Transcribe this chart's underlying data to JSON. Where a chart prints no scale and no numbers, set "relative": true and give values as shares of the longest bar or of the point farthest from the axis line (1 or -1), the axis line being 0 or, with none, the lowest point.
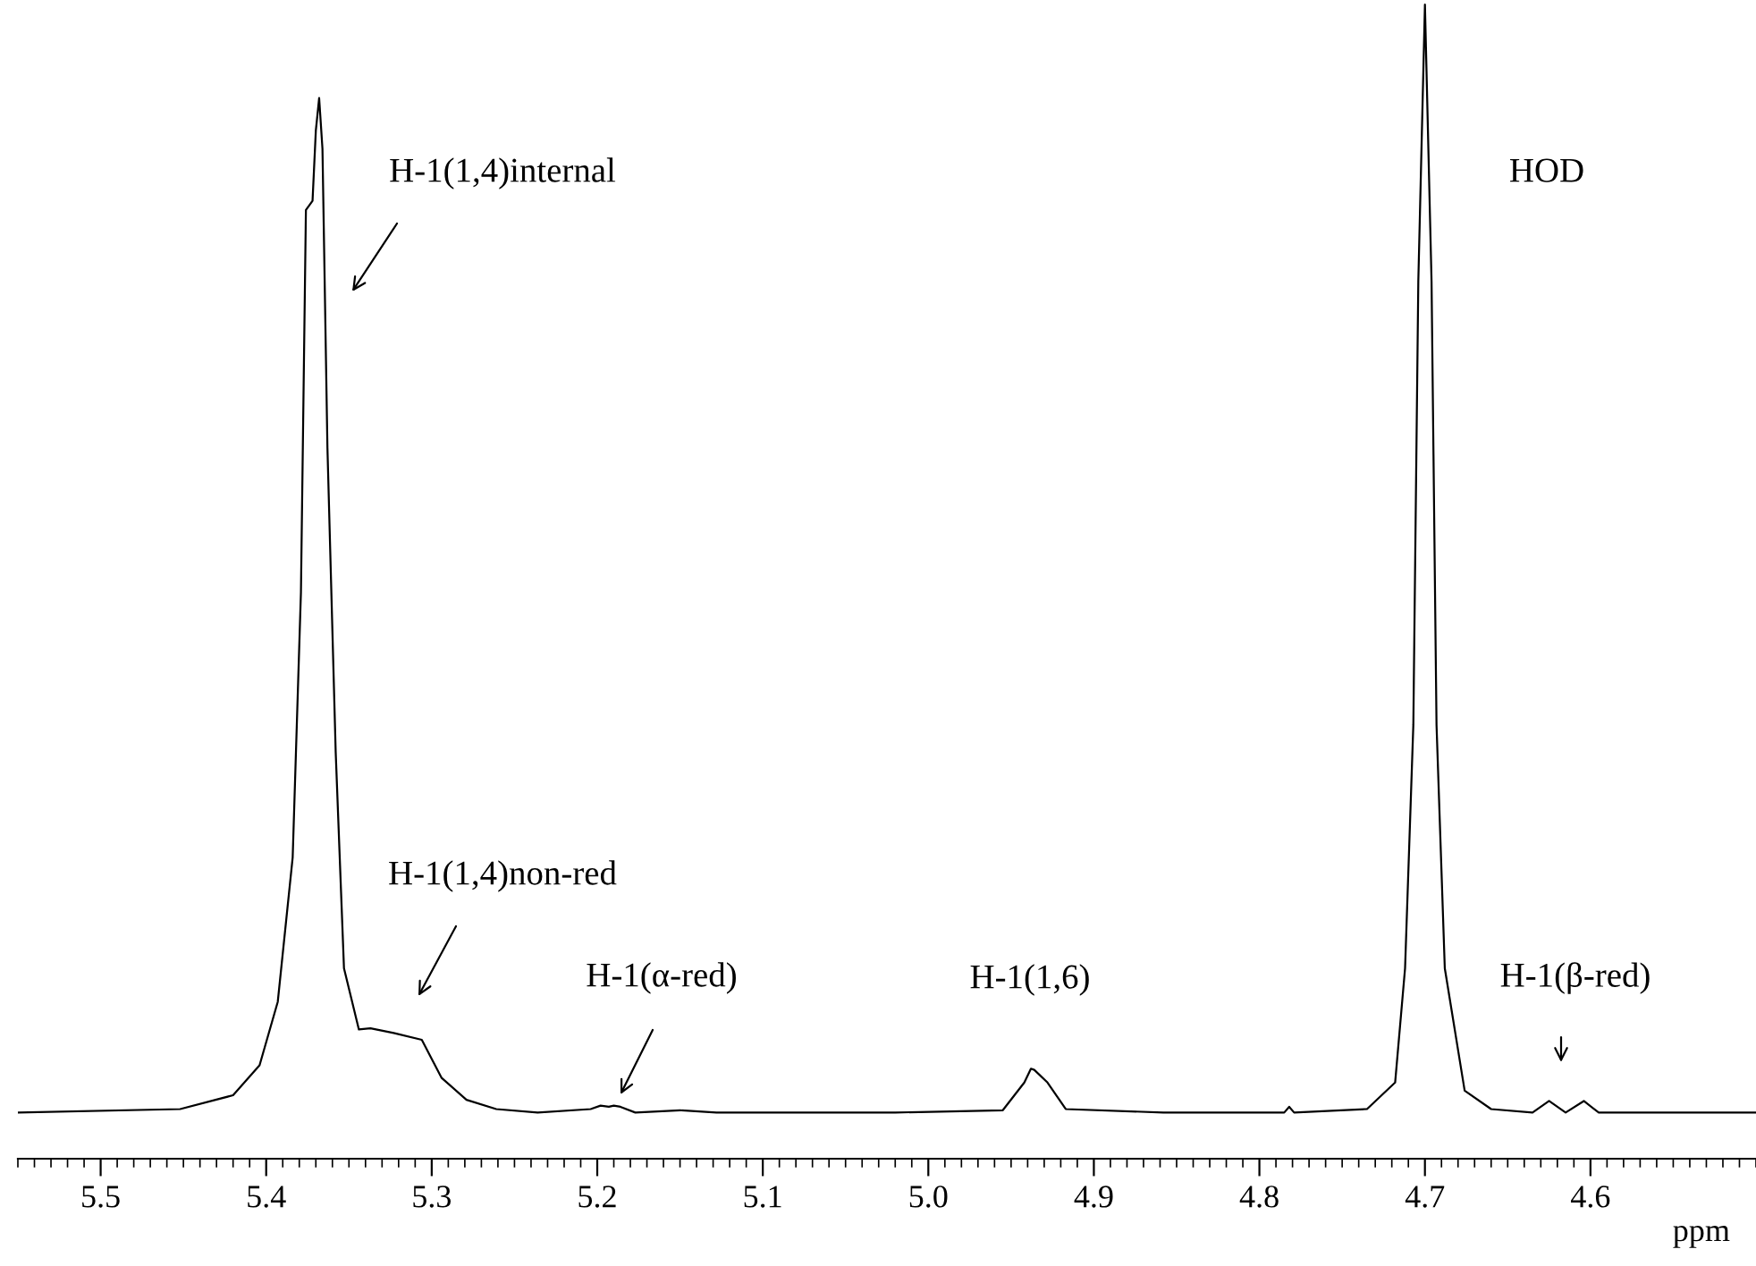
{
  "chart_data": {
    "type": "line",
    "relative": true,
    "xlabel": "ppm",
    "xlim": [
      5.55,
      4.5
    ],
    "xticks": [
      5.5,
      5.4,
      5.3,
      5.2,
      5.1,
      {
        "value": 5.0,
        "label": "5.0"
      },
      4.9,
      4.8,
      4.7,
      4.6
    ],
    "marker": "none",
    "line_style": "solid",
    "series": [
      {
        "color": "#000000",
        "x": [
          5.55,
          5.452,
          5.42,
          5.404,
          5.393,
          5.384,
          5.379,
          5.376,
          5.372,
          5.37,
          5.368,
          5.366,
          5.363,
          5.358,
          5.353,
          5.344,
          5.337,
          5.323,
          5.306,
          5.294,
          5.279,
          5.261,
          5.236,
          5.204,
          5.198,
          5.193,
          5.19,
          5.186,
          5.177,
          5.15,
          5.128,
          5.02,
          4.955,
          4.942,
          4.938,
          4.936,
          4.928,
          4.917,
          4.858,
          4.785,
          4.782,
          4.779,
          4.735,
          4.718,
          4.712,
          4.707,
          4.704,
          4.7,
          4.696,
          4.693,
          4.688,
          4.676,
          4.66,
          4.635,
          4.625,
          4.615,
          4.604,
          4.595,
          4.5
        ],
        "values": [
          0.04,
          0.043,
          0.055,
          0.081,
          0.136,
          0.261,
          0.491,
          0.822,
          0.83,
          0.891,
          0.919,
          0.875,
          0.616,
          0.352,
          0.165,
          0.112,
          0.113,
          0.109,
          0.103,
          0.07,
          0.051,
          0.043,
          0.04,
          0.043,
          0.046,
          0.045,
          0.046,
          0.045,
          0.04,
          0.042,
          0.04,
          0.04,
          0.042,
          0.066,
          0.078,
          0.077,
          0.066,
          0.043,
          0.04,
          0.04,
          0.045,
          0.04,
          0.043,
          0.066,
          0.165,
          0.376,
          0.76,
          1,
          0.76,
          0.376,
          0.165,
          0.059,
          0.043,
          0.04,
          0.05,
          0.04,
          0.05,
          0.04,
          0.04
        ]
      }
    ],
    "annotations": [
      "H-1(1,4)internal",
      "H-1(1,4)non-red",
      "H-1(α-red)",
      "H-1(1,6)",
      "HOD",
      "H-1(β-red)"
    ]
  }
}
